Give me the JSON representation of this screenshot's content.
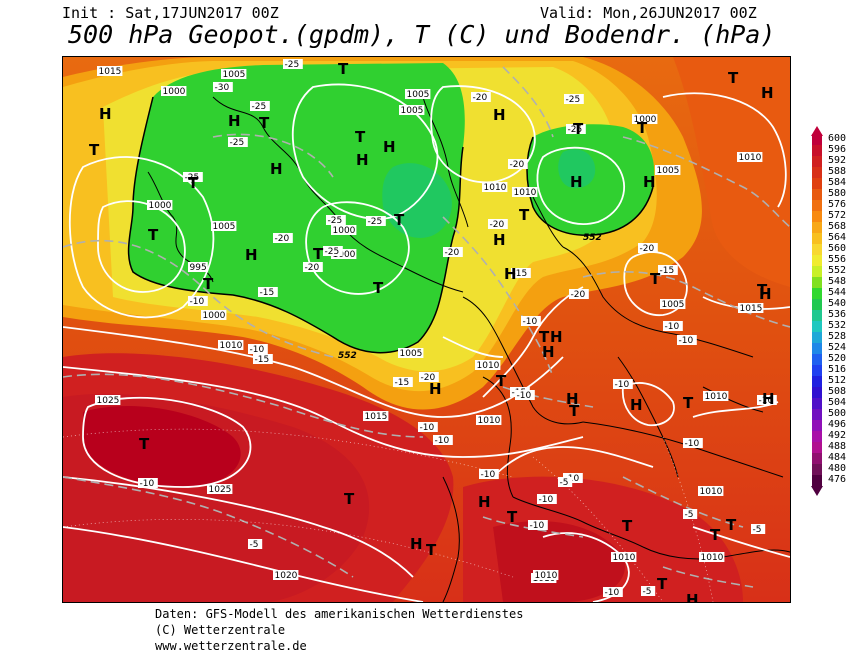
{
  "header": {
    "init": "Init : Sat,17JUN2017 00Z",
    "valid": "Valid: Mon,26JUN2017 00Z",
    "title": "500 hPa Geopot.(gpdm), T (C) und Bodendr. (hPa)"
  },
  "legend": {
    "values": [
      "600",
      "596",
      "592",
      "588",
      "584",
      "580",
      "576",
      "572",
      "568",
      "564",
      "560",
      "556",
      "552",
      "548",
      "544",
      "540",
      "536",
      "532",
      "528",
      "524",
      "520",
      "516",
      "512",
      "508",
      "504",
      "500",
      "496",
      "492",
      "488",
      "484",
      "480",
      "476"
    ],
    "colors": [
      "#c0003a",
      "#c8102a",
      "#d02020",
      "#d83018",
      "#e04010",
      "#e85a10",
      "#f07010",
      "#f88a10",
      "#f8a818",
      "#f8c020",
      "#f8d830",
      "#f0ec30",
      "#c8f028",
      "#80e020",
      "#30d830",
      "#20c850",
      "#20c890",
      "#20c8c0",
      "#20a8d8",
      "#2088e8",
      "#2060f0",
      "#2040f0",
      "#2020e0",
      "#3010d0",
      "#5010c8",
      "#7010c0",
      "#9010b8",
      "#a810a8",
      "#b01090",
      "#901070",
      "#701058",
      "#500040"
    ]
  },
  "map": {
    "pressure_labels": [
      "1015",
      "1005",
      "1000",
      "1005",
      "1005",
      "1000",
      "1000",
      "1005",
      "1000",
      "995",
      "1000",
      "1010",
      "1005",
      "1010",
      "1010",
      "1000",
      "1010",
      "1005",
      "1010",
      "1005",
      "1015",
      "1025",
      "1025",
      "1010",
      "1010",
      "1020",
      "1010",
      "1015",
      "1010",
      "1010",
      "1010",
      "1010"
    ],
    "temp_labels": [
      "-25",
      "-30",
      "-25",
      "-25",
      "-25",
      "-20",
      "-20",
      "-25",
      "-20",
      "-25",
      "-25",
      "-20",
      "-25",
      "-15",
      "-10",
      "-10",
      "-15",
      "-10",
      "-15",
      "-20",
      "-20",
      "-25",
      "-20",
      "-20",
      "-20",
      "-15",
      "-15",
      "-10",
      "-10",
      "-10",
      "-10",
      "-15",
      "-10",
      "-10",
      "-10",
      "-10",
      "-10",
      "-10",
      "-10",
      "-5",
      "-10",
      "-5",
      "-5",
      "-5",
      "-5",
      "-10",
      "-10"
    ],
    "geopot_labels": [
      "552",
      "552"
    ],
    "pressure_centers": [
      "H",
      "T",
      "T",
      "H",
      "T",
      "H",
      "H",
      "T",
      "T",
      "T",
      "T",
      "H",
      "H",
      "T",
      "T",
      "T",
      "H",
      "T",
      "T",
      "H",
      "T",
      "H",
      "H",
      "H",
      "T",
      "H",
      "H",
      "T",
      "T",
      "H",
      "H",
      "T",
      "H",
      "T",
      "H",
      "H",
      "T",
      "T",
      "H",
      "T",
      "H",
      "T",
      "T",
      "T",
      "H",
      "T",
      "T",
      "T",
      "T",
      "H"
    ]
  },
  "footer": {
    "line1": "Daten: GFS-Modell des amerikanischen Wetterdienstes",
    "line2": "(C) Wetterzentrale",
    "line3": "www.wetterzentrale.de"
  }
}
